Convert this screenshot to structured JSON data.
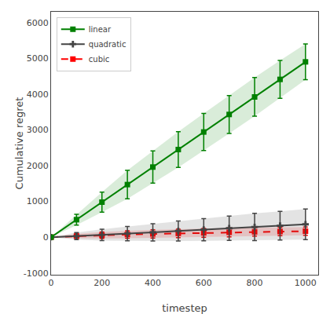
{
  "chart_data": {
    "type": "line",
    "xlabel": "timestep",
    "ylabel": "Cumulative regret",
    "x": [
      0,
      100,
      200,
      300,
      400,
      500,
      600,
      700,
      800,
      900,
      1000
    ],
    "series": [
      {
        "name": "linear",
        "color": "#008000",
        "marker": "square",
        "line_style": "solid",
        "values": [
          0,
          490,
          980,
          1470,
          1960,
          2450,
          2940,
          3430,
          3920,
          4410,
          4900
        ],
        "error": [
          0,
          150,
          280,
          400,
          450,
          500,
          520,
          530,
          540,
          530,
          500
        ]
      },
      {
        "name": "quadratic",
        "color": "#444444",
        "marker": "plus",
        "line_style": "solid",
        "values": [
          0,
          30,
          65,
          100,
          135,
          175,
          210,
          250,
          285,
          320,
          360
        ],
        "error": [
          0,
          100,
          160,
          200,
          240,
          280,
          310,
          340,
          380,
          400,
          430
        ]
      },
      {
        "name": "cubic",
        "color": "#ff0000",
        "marker": "square",
        "line_style": "dashed",
        "values": [
          0,
          30,
          55,
          75,
          90,
          105,
          120,
          135,
          148,
          158,
          168
        ],
        "error": [
          0,
          60,
          90,
          105,
          115,
          120,
          125,
          125,
          120,
          118,
          115
        ]
      }
    ],
    "xlim": [
      0,
      1050
    ],
    "xticks": [
      0,
      200,
      400,
      600,
      800,
      1000
    ],
    "ylim": [
      -1050,
      6300
    ],
    "yticks": [
      -1000,
      0,
      1000,
      2000,
      3000,
      4000,
      5000,
      6000
    ],
    "grid": false,
    "legend": "upper left"
  }
}
